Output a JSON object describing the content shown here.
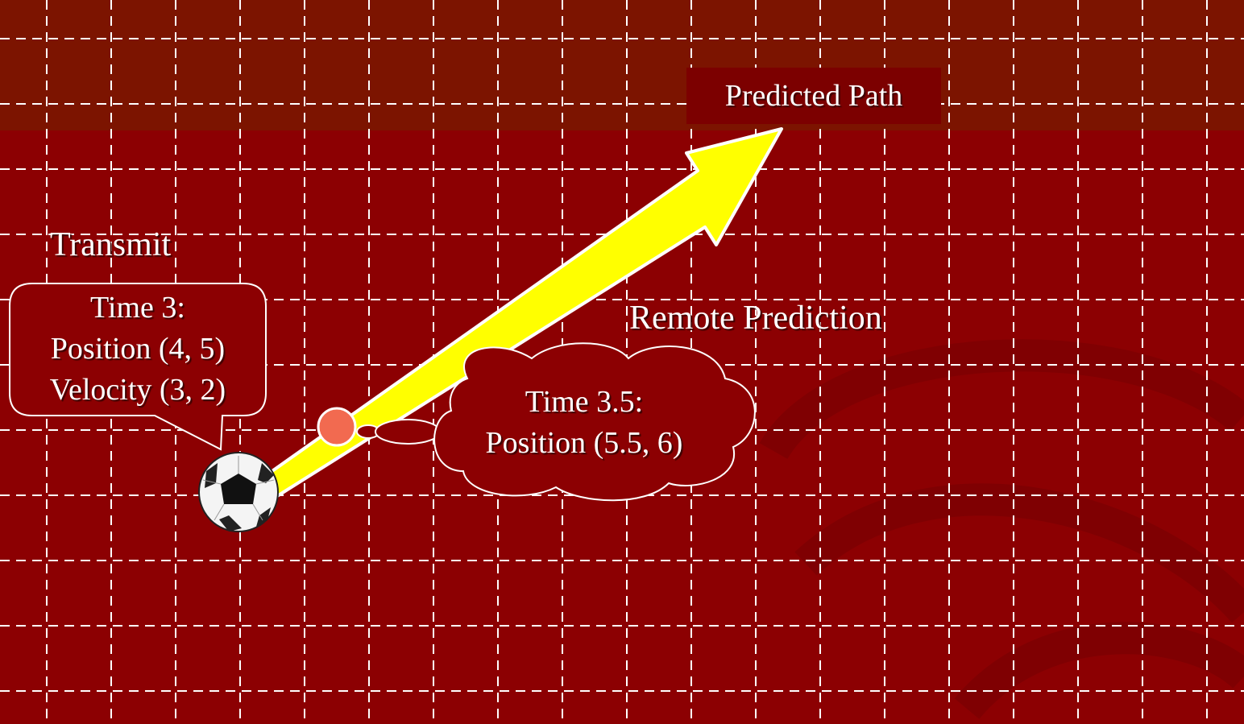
{
  "transmit": {
    "title": "Transmit",
    "time": "Time 3:",
    "position": "Position (4, 5)",
    "velocity": "Velocity (3, 2)"
  },
  "remote": {
    "title": "Remote Prediction",
    "time": "Time 3.5:",
    "position": "Position (5.5, 6)"
  },
  "predicted_path": {
    "label": "Predicted Path"
  },
  "colors": {
    "background": "#8c0002",
    "background_band": "#7c1400",
    "grid": "#ffffff",
    "arrow": "#ffff00",
    "predicted_point": "#f26a50"
  },
  "icons": {
    "ball": "soccer-ball-icon"
  }
}
